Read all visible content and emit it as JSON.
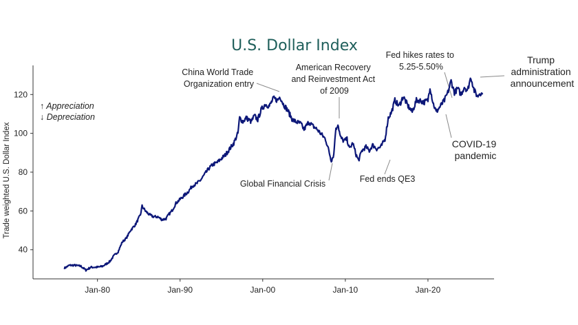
{
  "chart_data": {
    "type": "line",
    "title": "U.S. Dollar Index",
    "ylabel": "Trade weighted U.S. Dollar Index",
    "xlabel": "",
    "ylim": [
      25,
      135
    ],
    "xlim": [
      1972.2,
      2028.0
    ],
    "yticks": [
      40,
      60,
      80,
      100,
      120
    ],
    "xticks": [
      {
        "year": 1980,
        "label": "Jan-80"
      },
      {
        "year": 1990,
        "label": "Jan-90"
      },
      {
        "year": 2000,
        "label": "Jan-00"
      },
      {
        "year": 2010,
        "label": "Jan-10"
      },
      {
        "year": 2020,
        "label": "Jan-20"
      }
    ],
    "legend_lines": [
      "↑ Appreciation",
      "↓ Depreciation"
    ],
    "series": [
      {
        "color": "#0c1778",
        "points": [
          [
            1976.0,
            30.5
          ],
          [
            1976.6,
            32
          ],
          [
            1977.3,
            32
          ],
          [
            1978.0,
            31.5
          ],
          [
            1978.6,
            29.5
          ],
          [
            1979.2,
            31
          ],
          [
            1980.0,
            31
          ],
          [
            1980.6,
            31.5
          ],
          [
            1981.0,
            32.5
          ],
          [
            1981.5,
            34
          ],
          [
            1982.0,
            37
          ],
          [
            1982.5,
            39
          ],
          [
            1983.0,
            44
          ],
          [
            1983.5,
            46
          ],
          [
            1984.0,
            50
          ],
          [
            1984.6,
            53
          ],
          [
            1985.2,
            58
          ],
          [
            1985.4,
            62.5
          ],
          [
            1985.8,
            60
          ],
          [
            1986.3,
            58
          ],
          [
            1986.8,
            57
          ],
          [
            1987.3,
            57
          ],
          [
            1987.8,
            55.5
          ],
          [
            1988.3,
            56
          ],
          [
            1988.6,
            58
          ],
          [
            1989.0,
            60
          ],
          [
            1989.5,
            64
          ],
          [
            1990.0,
            66
          ],
          [
            1990.5,
            68
          ],
          [
            1991.0,
            70
          ],
          [
            1991.5,
            73
          ],
          [
            1992.0,
            74
          ],
          [
            1992.5,
            76
          ],
          [
            1993.0,
            79
          ],
          [
            1993.5,
            82
          ],
          [
            1994.0,
            84
          ],
          [
            1994.5,
            85
          ],
          [
            1995.0,
            87
          ],
          [
            1995.5,
            89
          ],
          [
            1996.0,
            92
          ],
          [
            1996.5,
            95
          ],
          [
            1997.0,
            100
          ],
          [
            1997.2,
            108
          ],
          [
            1997.6,
            106
          ],
          [
            1998.0,
            108
          ],
          [
            1998.6,
            106
          ],
          [
            1999.0,
            109
          ],
          [
            1999.4,
            107
          ],
          [
            1999.8,
            112
          ],
          [
            2000.3,
            115
          ],
          [
            2000.8,
            114
          ],
          [
            2001.3,
            118
          ],
          [
            2001.8,
            117
          ],
          [
            2002.1,
            119
          ],
          [
            2002.5,
            115
          ],
          [
            2003.0,
            112
          ],
          [
            2003.6,
            107
          ],
          [
            2004.0,
            106
          ],
          [
            2004.6,
            105
          ],
          [
            2005.0,
            102
          ],
          [
            2005.6,
            106
          ],
          [
            2006.0,
            104
          ],
          [
            2006.6,
            102
          ],
          [
            2007.0,
            100
          ],
          [
            2007.6,
            97
          ],
          [
            2008.0,
            91
          ],
          [
            2008.3,
            86
          ],
          [
            2008.6,
            89
          ],
          [
            2008.8,
            101
          ],
          [
            2009.1,
            105
          ],
          [
            2009.4,
            98
          ],
          [
            2009.8,
            96
          ],
          [
            2010.2,
            97
          ],
          [
            2010.5,
            92
          ],
          [
            2010.9,
            95
          ],
          [
            2011.3,
            89
          ],
          [
            2011.6,
            86
          ],
          [
            2012.0,
            91
          ],
          [
            2012.5,
            93
          ],
          [
            2012.9,
            91
          ],
          [
            2013.3,
            94
          ],
          [
            2013.8,
            92
          ],
          [
            2014.3,
            93
          ],
          [
            2014.8,
            97
          ],
          [
            2015.2,
            108
          ],
          [
            2015.6,
            111
          ],
          [
            2016.0,
            117
          ],
          [
            2016.5,
            114
          ],
          [
            2017.0,
            119
          ],
          [
            2017.6,
            114
          ],
          [
            2018.1,
            111
          ],
          [
            2018.6,
            117
          ],
          [
            2019.0,
            117
          ],
          [
            2019.5,
            116
          ],
          [
            2020.0,
            117
          ],
          [
            2020.25,
            124
          ],
          [
            2020.6,
            116
          ],
          [
            2021.0,
            111
          ],
          [
            2021.5,
            114
          ],
          [
            2022.0,
            117
          ],
          [
            2022.4,
            121
          ],
          [
            2022.8,
            127
          ],
          [
            2023.2,
            121
          ],
          [
            2023.6,
            123
          ],
          [
            2024.0,
            120
          ],
          [
            2024.4,
            124
          ],
          [
            2024.8,
            122
          ],
          [
            2025.0,
            126
          ],
          [
            2025.2,
            129
          ],
          [
            2025.6,
            122
          ],
          [
            2026.0,
            119
          ],
          [
            2026.3,
            121
          ],
          [
            2026.6,
            120
          ]
        ]
      }
    ],
    "annotations": [
      {
        "id": "china",
        "lines": [
          "China World Trade",
          "Organization entry"
        ]
      },
      {
        "id": "arra",
        "lines": [
          "American Recovery",
          "and Reinvestment Act",
          "of 2009"
        ]
      },
      {
        "id": "fedhike",
        "lines": [
          "Fed hikes rates to",
          "5.25-5.50%"
        ]
      },
      {
        "id": "trump",
        "lines": [
          "Trump",
          "administration",
          "announcement"
        ]
      },
      {
        "id": "gfc",
        "lines": [
          "Global Financial Crisis"
        ]
      },
      {
        "id": "qe3",
        "lines": [
          "Fed ends QE3"
        ]
      },
      {
        "id": "covid",
        "lines": [
          "COVID-19",
          "pandemic"
        ]
      }
    ]
  }
}
